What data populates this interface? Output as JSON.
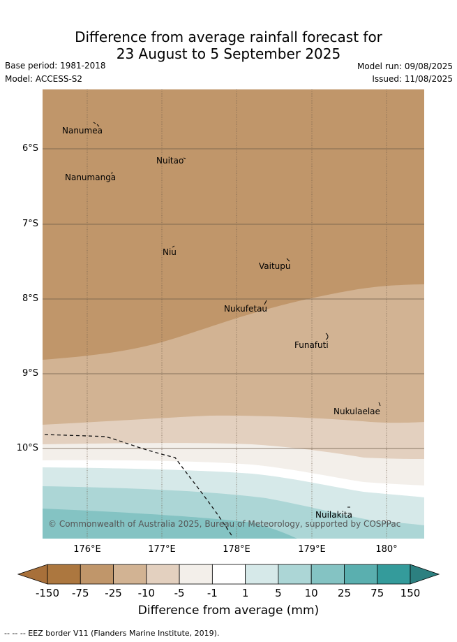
{
  "title": {
    "line1": "Difference from average rainfall forecast for",
    "line2": "23 August to 5 September 2025"
  },
  "meta": {
    "base_period": "Base period: 1981-2018",
    "model": "Model: ACCESS-S2",
    "model_run": "Model run: 09/08/2025",
    "issued": "Issued: 11/08/2025"
  },
  "map": {
    "lat_labels": [
      "6°S",
      "7°S",
      "8°S",
      "9°S",
      "10°S"
    ],
    "lon_labels": [
      "176°E",
      "177°E",
      "178°E",
      "179°E",
      "180°"
    ],
    "islands": [
      "Nanumea",
      "Nuitao",
      "Nanumanga",
      "Niu",
      "Vaitupu",
      "Nukufetau",
      "Funafuti",
      "Nukulaelae",
      "Nuilakita"
    ],
    "copyright": "© Commonwealth of Australia 2025, Bureau of Meteorology, supported by COSPPac"
  },
  "colorbar": {
    "labels": [
      "-150",
      "-75",
      "-25",
      "-10",
      "-5",
      "-1",
      "1",
      "5",
      "10",
      "25",
      "75",
      "150"
    ],
    "colors": [
      "#a8703a",
      "#ac773f",
      "#c0966a",
      "#d2b393",
      "#e3d0bf",
      "#f3efea",
      "#ffffff",
      "#d6e9e9",
      "#acd6d6",
      "#84c3c3",
      "#5aafaf",
      "#349b9b",
      "#2c8080"
    ],
    "title": "Difference from average (mm)"
  },
  "footer": "-- -- -- EEZ border V11 (Flanders Marine Institute, 2019)."
}
